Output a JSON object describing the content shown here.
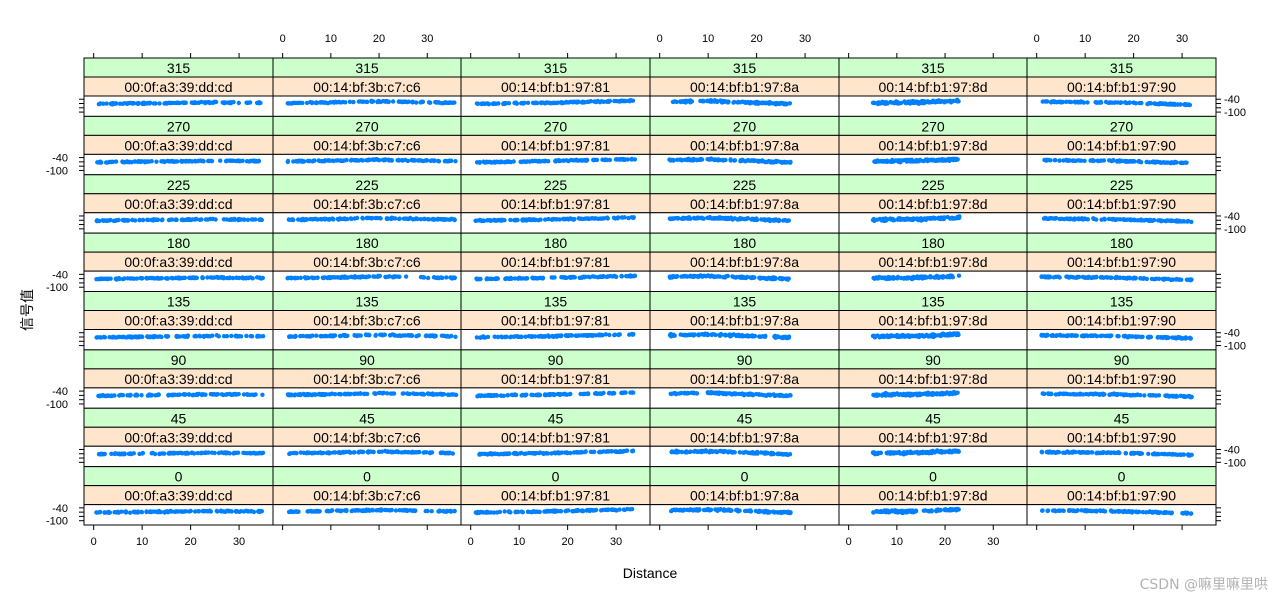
{
  "chart_data": {
    "type": "scatter",
    "layout": "trellis",
    "xlabel": "Distance",
    "ylabel": "信号值",
    "point_color": "#0080ff",
    "strip_colors": {
      "angle": "#ccffcc",
      "mac": "#ffe5cc"
    },
    "x_ticks": [
      0,
      10,
      20,
      30
    ],
    "y_ticks": [
      -40,
      -100
    ],
    "ylim": [
      -120,
      -25
    ],
    "angles": [
      "0",
      "45",
      "90",
      "135",
      "180",
      "225",
      "270",
      "315"
    ],
    "macs": [
      "00:0f:a3:39:dd:cd",
      "00:14:bf:3b:c7:c6",
      "00:14:bf:b1:97:81",
      "00:14:bf:b1:97:8a",
      "00:14:bf:b1:97:8d",
      "00:14:bf:b1:97:90"
    ],
    "series": [
      {
        "mac": "00:0f:a3:39:dd:cd",
        "xlim": [
          -2,
          37
        ],
        "x_range": [
          0.5,
          35
        ],
        "trend": [
          [
            0,
            -62
          ],
          [
            15,
            -58
          ],
          [
            25,
            -55
          ],
          [
            35,
            -57
          ]
        ],
        "spread": 4
      },
      {
        "mac": "00:14:bf:3b:c7:c6",
        "xlim": [
          -2,
          37
        ],
        "x_range": [
          1,
          36
        ],
        "trend": [
          [
            0,
            -58
          ],
          [
            10,
            -55
          ],
          [
            20,
            -50
          ],
          [
            36,
            -57
          ]
        ],
        "spread": 4
      },
      {
        "mac": "00:14:bf:b1:97:81",
        "xlim": [
          -2,
          37
        ],
        "x_range": [
          1,
          34
        ],
        "trend": [
          [
            0,
            -62
          ],
          [
            15,
            -57
          ],
          [
            34,
            -47
          ]
        ],
        "spread": 4
      },
      {
        "mac": "00:14:bf:b1:97:8a",
        "xlim": [
          -2,
          37
        ],
        "x_range": [
          2,
          27
        ],
        "trend": [
          [
            2,
            -52
          ],
          [
            10,
            -48
          ],
          [
            27,
            -62
          ]
        ],
        "spread": 6
      },
      {
        "mac": "00:14:bf:b1:97:8d",
        "xlim": [
          -2,
          37
        ],
        "x_range": [
          5,
          23
        ],
        "trend": [
          [
            5,
            -58
          ],
          [
            15,
            -55
          ],
          [
            23,
            -47
          ]
        ],
        "spread": 8
      },
      {
        "mac": "00:14:bf:b1:97:90",
        "xlim": [
          -2,
          37
        ],
        "x_range": [
          1,
          32
        ],
        "trend": [
          [
            0,
            -52
          ],
          [
            15,
            -55
          ],
          [
            32,
            -66
          ]
        ],
        "spread": 4
      }
    ]
  },
  "watermark": "CSDN @嘛里嘛里哄"
}
